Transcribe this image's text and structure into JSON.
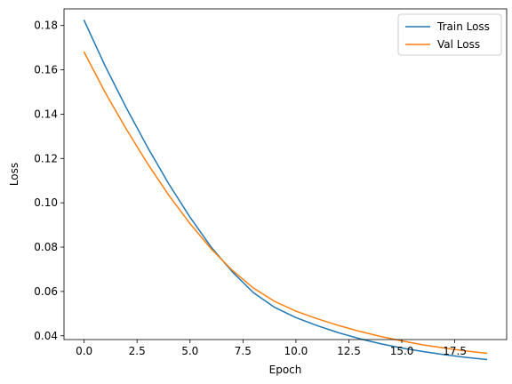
{
  "chart_data": {
    "type": "line",
    "title": "",
    "xlabel": "Epoch",
    "ylabel": "Loss",
    "xlim": [
      -0.95,
      19.95
    ],
    "ylim": [
      0.0383,
      0.1875
    ],
    "x_ticks": [
      0.0,
      2.5,
      5.0,
      7.5,
      10.0,
      12.5,
      15.0,
      17.5
    ],
    "x_tick_labels": [
      "0.0",
      "2.5",
      "5.0",
      "7.5",
      "10.0",
      "12.5",
      "15.0",
      "17.5"
    ],
    "y_ticks": [
      0.04,
      0.06,
      0.08,
      0.1,
      0.12,
      0.14,
      0.16,
      0.18
    ],
    "y_tick_labels": [
      "0.04",
      "0.06",
      "0.08",
      "0.10",
      "0.12",
      "0.14",
      "0.16",
      "0.18"
    ],
    "grid": false,
    "legend_position": "top-right",
    "x": [
      0,
      1,
      2,
      3,
      4,
      5,
      6,
      7,
      8,
      9,
      10,
      11,
      12,
      13,
      14,
      15,
      16,
      17,
      18,
      19
    ],
    "series": [
      {
        "name": "Train Loss",
        "color": "#1f77b4",
        "values": [
          0.1823,
          0.1616,
          0.1427,
          0.125,
          0.1085,
          0.0935,
          0.08,
          0.0688,
          0.0594,
          0.0528,
          0.0482,
          0.0446,
          0.0414,
          0.0387,
          0.0364,
          0.0345,
          0.0329,
          0.0315,
          0.0303,
          0.0293
        ]
      },
      {
        "name": "Val Loss",
        "color": "#ff7f0e",
        "values": [
          0.168,
          0.1497,
          0.1331,
          0.1176,
          0.1034,
          0.0906,
          0.0792,
          0.0695,
          0.0615,
          0.0555,
          0.0511,
          0.0477,
          0.0447,
          0.042,
          0.0397,
          0.0377,
          0.0359,
          0.0345,
          0.0332,
          0.0321
        ]
      }
    ]
  }
}
